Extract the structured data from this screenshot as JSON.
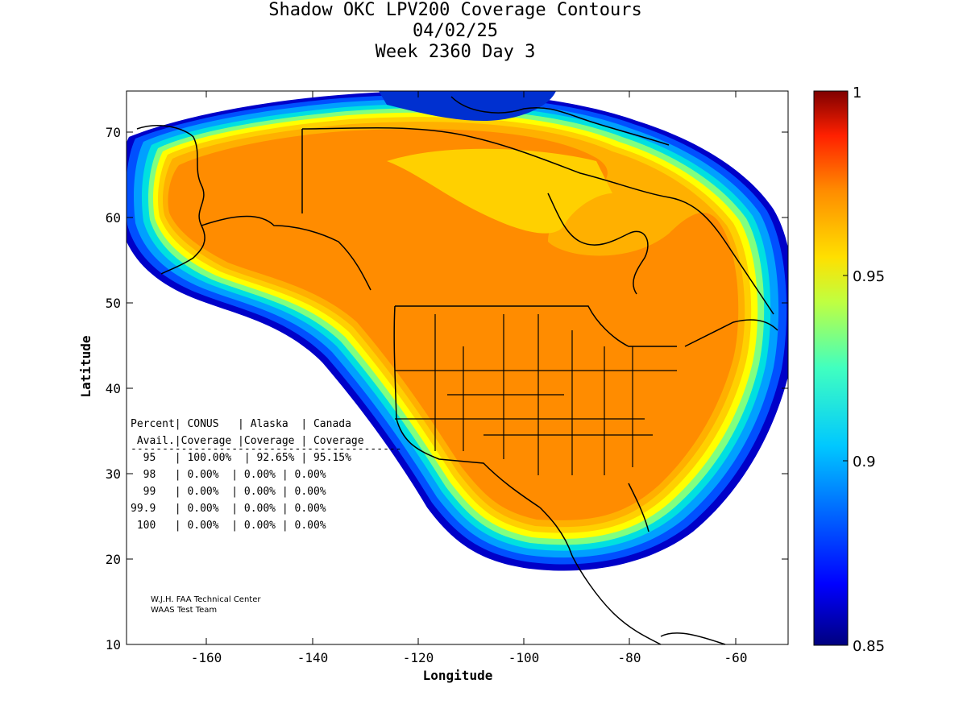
{
  "title": {
    "line1": "Shadow OKC LPV200 Coverage Contours",
    "line2": "04/02/25",
    "line3": "Week 2360 Day 3"
  },
  "axes": {
    "xlabel": "Longitude",
    "ylabel": "Latitude",
    "x_ticks": [
      "-160",
      "-140",
      "-120",
      "-100",
      "-80",
      "-60"
    ],
    "y_ticks": [
      "70",
      "60",
      "50",
      "40",
      "30",
      "20",
      "10"
    ],
    "x_range": [
      -175,
      -50
    ],
    "y_range": [
      10,
      75
    ]
  },
  "colorbar": {
    "ticks": [
      "1",
      "0.95",
      "0.9",
      "0.85"
    ],
    "range": [
      0.85,
      1.0
    ],
    "colors": [
      "#00007f",
      "#0000ff",
      "#007fff",
      "#00ffff",
      "#7fff7f",
      "#ffff00",
      "#ff7f00",
      "#ff0000",
      "#7f0000"
    ]
  },
  "coverage_table": {
    "header1": "Percent| CONUS   | Alaska  | Canada",
    "header2": " Avail.|Coverage |Coverage | Coverage",
    "divider": "-------------------------------------------",
    "rows": [
      "  95   | 100.00%  | 92.65% | 95.15%",
      "  98   | 0.00%  | 0.00% | 0.00%",
      "  99   | 0.00%  | 0.00% | 0.00%",
      "99.9   | 0.00%  | 0.00% | 0.00%",
      " 100   | 0.00%  | 0.00% | 0.00%"
    ]
  },
  "credits": {
    "line1": "W.J.H. FAA Technical Center",
    "line2": "WAAS Test Team"
  },
  "colors": {
    "orange": "#ff8c00",
    "deep_blue": "#0000c8",
    "land_outline": "#000000"
  }
}
